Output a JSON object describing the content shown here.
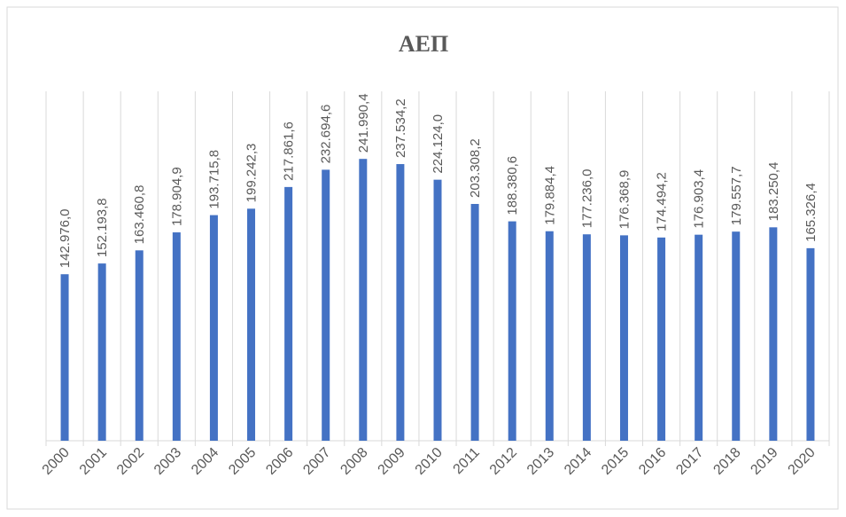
{
  "chart_data": {
    "type": "bar",
    "title": "ΑΕΠ",
    "categories": [
      "2000",
      "2001",
      "2002",
      "2003",
      "2004",
      "2005",
      "2006",
      "2007",
      "2008",
      "2009",
      "2010",
      "2011",
      "2012",
      "2013",
      "2014",
      "2015",
      "2016",
      "2017",
      "2018",
      "2019",
      "2020"
    ],
    "values": [
      142976.0,
      152193.8,
      163460.8,
      178904.9,
      193715.8,
      199242.3,
      217861.6,
      232694.6,
      241990.4,
      237534.2,
      224124.0,
      203308.2,
      188380.6,
      179884.4,
      177236.0,
      176368.9,
      174494.2,
      176903.4,
      179557.7,
      183250.4,
      165326.4
    ],
    "value_labels": [
      "142.976,0",
      "152.193,8",
      "163.460,8",
      "178.904,9",
      "193.715,8",
      "199.242,3",
      "217.861,6",
      "232.694,6",
      "241.990,4",
      "237.534,2",
      "224.124,0",
      "203.308,2",
      "188.380,6",
      "179.884,4",
      "177.236,0",
      "176.368,9",
      "174.494,2",
      "176.903,4",
      "179.557,7",
      "183.250,4",
      "165.326,4"
    ],
    "color": "#4472c4",
    "ylim": [
      0,
      300000
    ]
  }
}
